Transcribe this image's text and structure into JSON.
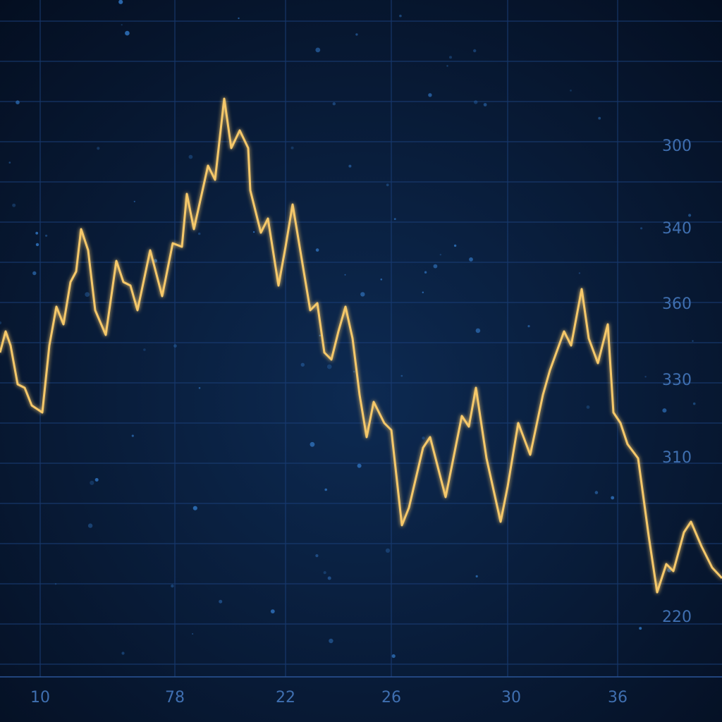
{
  "chart_data": {
    "type": "line",
    "x_labels": [
      "10",
      "78",
      "22",
      "26",
      "30",
      "36"
    ],
    "y_labels": [
      "300",
      "340",
      "360",
      "330",
      "310",
      "220"
    ],
    "xlim": [
      0,
      1024
    ],
    "ylim": [
      0,
      1024
    ],
    "color": "#f5c86a",
    "x": [
      0,
      8,
      15,
      25,
      35,
      45,
      60,
      70,
      80,
      90,
      100,
      108,
      115,
      125,
      135,
      150,
      165,
      175,
      185,
      195,
      213,
      230,
      245,
      258,
      265,
      275,
      285,
      295,
      305,
      318,
      328,
      340,
      352,
      355,
      370,
      380,
      395,
      405,
      415,
      425,
      440,
      450,
      460,
      470,
      480,
      490,
      500,
      510,
      520,
      530,
      545,
      555,
      570,
      580,
      600,
      610,
      632,
      655,
      665,
      675,
      690,
      710,
      720,
      735,
      752,
      770,
      780,
      800,
      810,
      825,
      835,
      848,
      862,
      870,
      880,
      890,
      905,
      920,
      932,
      945,
      955,
      970,
      980,
      995,
      1010,
      1024
    ],
    "values": [
      524,
      554,
      534,
      479,
      474,
      449,
      439,
      534,
      589,
      564,
      624,
      639,
      699,
      669,
      584,
      549,
      654,
      624,
      619,
      584,
      669,
      604,
      679,
      674,
      749,
      699,
      744,
      789,
      769,
      884,
      814,
      839,
      814,
      754,
      694,
      714,
      619,
      674,
      734,
      674,
      584,
      594,
      524,
      514,
      554,
      589,
      544,
      464,
      404,
      454,
      424,
      414,
      279,
      304,
      389,
      404,
      319,
      434,
      419,
      474,
      374,
      284,
      334,
      424,
      379,
      464,
      499,
      554,
      534,
      614,
      544,
      509,
      564,
      439,
      424,
      394,
      374,
      264,
      184,
      224,
      214,
      269,
      284,
      249,
      219,
      204
    ]
  }
}
